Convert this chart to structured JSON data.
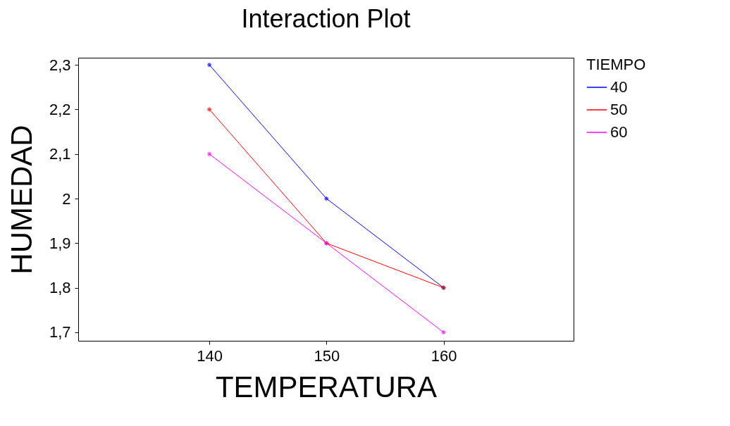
{
  "chart_data": {
    "type": "line",
    "title": "Interaction Plot",
    "xlabel": "TEMPERATURA",
    "ylabel": "HUMEDAD",
    "legend_title": "TIEMPO",
    "x": [
      140,
      150,
      160
    ],
    "series": [
      {
        "name": "40",
        "color": "#0000ff",
        "values": [
          2.3,
          2.0,
          1.8
        ]
      },
      {
        "name": "50",
        "color": "#ff0000",
        "values": [
          2.2,
          1.9,
          1.8
        ]
      },
      {
        "name": "60",
        "color": "#ff00ff",
        "values": [
          2.1,
          1.9,
          1.7
        ]
      }
    ],
    "xlim": [
      128.8,
      171.1
    ],
    "xticks": [
      140,
      150,
      160
    ],
    "ylim": [
      1.681,
      2.316
    ],
    "yticks": [
      {
        "value": 1.7,
        "label": "1,7"
      },
      {
        "value": 1.8,
        "label": "1,8"
      },
      {
        "value": 1.9,
        "label": "1,9"
      },
      2,
      {
        "value": 2.1,
        "label": "2,1"
      },
      {
        "value": 2.2,
        "label": "2,2"
      },
      {
        "value": 2.3,
        "label": "2,3"
      }
    ],
    "grid": false,
    "legend": "top right",
    "marker": "cross",
    "line_style": "solid"
  }
}
